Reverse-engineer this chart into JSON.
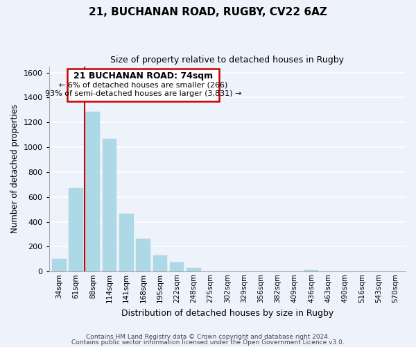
{
  "title_line1": "21, BUCHANAN ROAD, RUGBY, CV22 6AZ",
  "title_line2": "Size of property relative to detached houses in Rugby",
  "xlabel": "Distribution of detached houses by size in Rugby",
  "ylabel": "Number of detached properties",
  "footer_line1": "Contains HM Land Registry data © Crown copyright and database right 2024.",
  "footer_line2": "Contains public sector information licensed under the Open Government Licence v3.0.",
  "annotation_line1": "21 BUCHANAN ROAD: 74sqm",
  "annotation_line2": "← 6% of detached houses are smaller (266)",
  "annotation_line3": "93% of semi-detached houses are larger (3,831) →",
  "bar_labels": [
    "34sqm",
    "61sqm",
    "88sqm",
    "114sqm",
    "141sqm",
    "168sqm",
    "195sqm",
    "222sqm",
    "248sqm",
    "275sqm",
    "302sqm",
    "329sqm",
    "356sqm",
    "382sqm",
    "409sqm",
    "436sqm",
    "463sqm",
    "490sqm",
    "516sqm",
    "543sqm",
    "570sqm"
  ],
  "bar_values": [
    100,
    670,
    1285,
    1070,
    465,
    265,
    130,
    75,
    30,
    0,
    0,
    0,
    0,
    0,
    0,
    15,
    0,
    0,
    0,
    0,
    0
  ],
  "bar_color": "#add8e6",
  "marker_color": "#cc0000",
  "ylim": [
    0,
    1650
  ],
  "yticks": [
    0,
    200,
    400,
    600,
    800,
    1000,
    1200,
    1400,
    1600
  ],
  "bg_color": "#eef2fa",
  "grid_color": "#ffffff",
  "annotation_box_color": "#ffffff",
  "annotation_box_edge": "#cc0000"
}
